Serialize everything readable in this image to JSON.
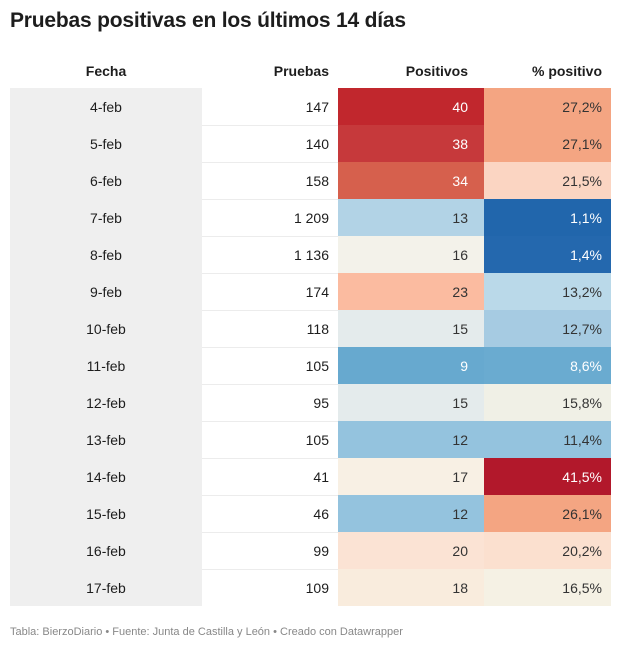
{
  "title": "Pruebas positivas en los últimos 14 días",
  "headers": {
    "fecha": "Fecha",
    "pruebas": "Pruebas",
    "positivos": "Positivos",
    "pct": "% positivo"
  },
  "footer": "Tabla: BierzoDiario • Fuente: Junta de Castilla y León • Creado con Datawrapper",
  "chart_data": {
    "type": "table",
    "title": "Pruebas positivas en los últimos 14 días",
    "columns": [
      "Fecha",
      "Pruebas",
      "Positivos",
      "% positivo"
    ],
    "rows": [
      {
        "fecha": "4-feb",
        "pruebas": "147",
        "positivos": "40",
        "pct": "27,2%",
        "pos_color": "#c1272d",
        "pct_color": "#f4a582",
        "pos_text": "#ffffff",
        "pct_text": "#333333"
      },
      {
        "fecha": "5-feb",
        "pruebas": "140",
        "positivos": "38",
        "pct": "27,1%",
        "pos_color": "#c6393b",
        "pct_color": "#f4a582",
        "pos_text": "#ffffff",
        "pct_text": "#333333"
      },
      {
        "fecha": "6-feb",
        "pruebas": "158",
        "positivos": "34",
        "pct": "21,5%",
        "pos_color": "#d6604d",
        "pct_color": "#fbd5c2",
        "pos_text": "#ffffff",
        "pct_text": "#333333"
      },
      {
        "fecha": "7-feb",
        "pruebas": "1 209",
        "positivos": "13",
        "pct": "1,1%",
        "pos_color": "#b2d3e6",
        "pct_color": "#2166ac",
        "pos_text": "#333333",
        "pct_text": "#ffffff"
      },
      {
        "fecha": "8-feb",
        "pruebas": "1 136",
        "positivos": "16",
        "pct": "1,4%",
        "pos_color": "#f3f2ea",
        "pct_color": "#2468ae",
        "pos_text": "#333333",
        "pct_text": "#ffffff"
      },
      {
        "fecha": "9-feb",
        "pruebas": "174",
        "positivos": "23",
        "pct": "13,2%",
        "pos_color": "#fbbba0",
        "pct_color": "#bad9e9",
        "pos_text": "#333333",
        "pct_text": "#333333"
      },
      {
        "fecha": "10-feb",
        "pruebas": "118",
        "positivos": "15",
        "pct": "12,7%",
        "pos_color": "#e4ebec",
        "pct_color": "#a6cbe2",
        "pos_text": "#333333",
        "pct_text": "#333333"
      },
      {
        "fecha": "11-feb",
        "pruebas": "105",
        "positivos": "9",
        "pct": "8,6%",
        "pos_color": "#67a9cf",
        "pct_color": "#6aabd0",
        "pos_text": "#ffffff",
        "pct_text": "#ffffff"
      },
      {
        "fecha": "12-feb",
        "pruebas": "95",
        "positivos": "15",
        "pct": "15,8%",
        "pos_color": "#e4ebec",
        "pct_color": "#f0f0e6",
        "pos_text": "#333333",
        "pct_text": "#333333"
      },
      {
        "fecha": "13-feb",
        "pruebas": "105",
        "positivos": "12",
        "pct": "11,4%",
        "pos_color": "#94c3de",
        "pct_color": "#94c3de",
        "pos_text": "#333333",
        "pct_text": "#333333"
      },
      {
        "fecha": "14-feb",
        "pruebas": "41",
        "positivos": "17",
        "pct": "41,5%",
        "pos_color": "#f8f0e4",
        "pct_color": "#b2182b",
        "pos_text": "#333333",
        "pct_text": "#ffffff"
      },
      {
        "fecha": "15-feb",
        "pruebas": "46",
        "positivos": "12",
        "pct": "26,1%",
        "pos_color": "#94c3de",
        "pct_color": "#f4a582",
        "pos_text": "#333333",
        "pct_text": "#333333"
      },
      {
        "fecha": "16-feb",
        "pruebas": "99",
        "positivos": "20",
        "pct": "20,2%",
        "pos_color": "#fbe3d4",
        "pct_color": "#fbe0cf",
        "pos_text": "#333333",
        "pct_text": "#333333"
      },
      {
        "fecha": "17-feb",
        "pruebas": "109",
        "positivos": "18",
        "pct": "16,5%",
        "pos_color": "#f9ecdd",
        "pct_color": "#f5f1e4",
        "pos_text": "#333333",
        "pct_text": "#333333"
      }
    ]
  }
}
